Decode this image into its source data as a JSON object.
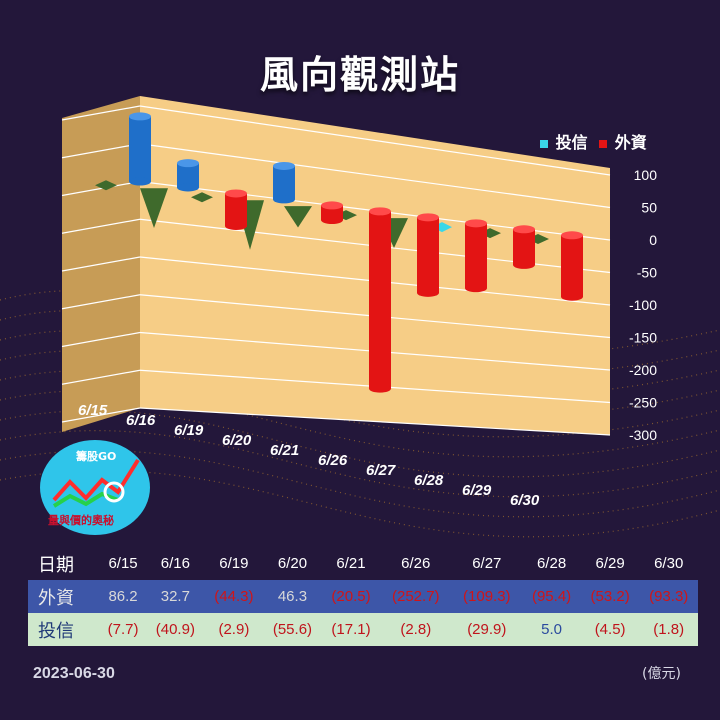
{
  "title": "風向觀測站",
  "legend": {
    "trust": "投信",
    "foreign": "外資"
  },
  "colors": {
    "foreign": "#e31414",
    "foreign_pos": "#1f6fc9",
    "trust_neg": "#3f6a2c",
    "trust_pos": "#3ad7e8"
  },
  "chart_data": {
    "type": "bar",
    "categories": [
      "6/15",
      "6/16",
      "6/19",
      "6/20",
      "6/21",
      "6/26",
      "6/27",
      "6/28",
      "6/29",
      "6/30"
    ],
    "series": [
      {
        "name": "外資",
        "values": [
          86.2,
          32.7,
          -44.3,
          46.3,
          -20.5,
          -252.7,
          -109.3,
          -95.4,
          -53.2,
          -93.3
        ]
      },
      {
        "name": "投信",
        "values": [
          -7.7,
          -40.9,
          -2.9,
          -55.6,
          -17.1,
          -2.8,
          -29.9,
          5.0,
          -4.5,
          -1.8
        ]
      }
    ],
    "yticks": [
      "100",
      "50",
      "0",
      "-50",
      "-100",
      "-150",
      "-200",
      "-250",
      "-300"
    ],
    "ylim": [
      -300,
      100
    ]
  },
  "table": {
    "row_labels": {
      "date": "日期",
      "foreign": "外資",
      "trust": "投信"
    },
    "dates": [
      "6/15",
      "6/16",
      "6/19",
      "6/20",
      "6/21",
      "6/26",
      "6/27",
      "6/28",
      "6/29",
      "6/30"
    ],
    "foreign": [
      "86.2",
      "32.7",
      "(44.3)",
      "46.3",
      "(20.5)",
      "(252.7)",
      "(109.3)",
      "(95.4)",
      "(53.2)",
      "(93.3)"
    ],
    "trust": [
      "(7.7)",
      "(40.9)",
      "(2.9)",
      "(55.6)",
      "(17.1)",
      "(2.8)",
      "(29.9)",
      "5.0",
      "(4.5)",
      "(1.8)"
    ]
  },
  "logo": {
    "text": "籌股GO",
    "subtitle": "量與價的奧秘"
  },
  "footer": {
    "date": "2023-06-30",
    "unit": "(億元)"
  }
}
